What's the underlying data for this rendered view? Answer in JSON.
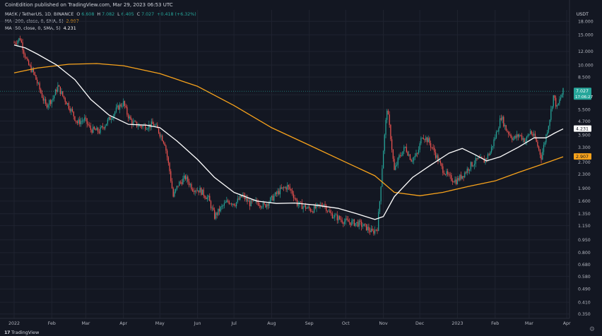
{
  "header": {
    "published": "CoinEdition published on TradingView.com, Mar 29, 2023 06:53 UTC",
    "symbol": "MASK / TetherUS, 1D, BINANCE",
    "ohlc": {
      "o_label": "O",
      "o": "6.608",
      "h_label": "H",
      "h": "7.082",
      "l_label": "L",
      "l": "6.405",
      "c_label": "C",
      "c": "7.027",
      "change": "+0.418 (+6.32%)"
    },
    "ma200": {
      "label": "MA (200, close, 0, SMA, 5)",
      "value": "2.907"
    },
    "ma50": {
      "label": "MA (50, close, 0, SMA, 5)",
      "value": "4.231"
    }
  },
  "colors": {
    "background": "#131722",
    "up": "#26a69a",
    "down": "#ef5350",
    "ma50": "#ffffff",
    "ma200": "#f7a21b",
    "grid": "#1f2330",
    "price_tag": "#26a69a"
  },
  "chart_data": {
    "type": "candlestick",
    "title": "MASK / TetherUS, 1D, BINANCE",
    "y_unit": "USDT",
    "y_scale": "log",
    "ylim": [
      0.33,
      21
    ],
    "x_range": [
      "2022-01-01",
      "2023-03-29"
    ],
    "y_ticks": [
      "18.000",
      "15.000",
      "12.000",
      "10.000",
      "8.500",
      "6.700",
      "5.500",
      "4.700",
      "3.900",
      "3.300",
      "2.700",
      "2.300",
      "1.900",
      "1.600",
      "1.350",
      "1.150",
      "0.950",
      "0.800",
      "0.680",
      "0.580",
      "0.490",
      "0.410",
      "0.350"
    ],
    "x_ticks": [
      "2022",
      "Feb",
      "Mar",
      "Apr",
      "May",
      "Jun",
      "Jul",
      "Aug",
      "Sep",
      "Oct",
      "Nov",
      "Dec",
      "2023",
      "Feb",
      "Mar",
      "Apr"
    ],
    "price_tags": [
      {
        "label": "7.027",
        "sub": "17:06:27",
        "value": 7.027,
        "color": "#26a69a"
      },
      {
        "label": "4.231",
        "value": 4.231,
        "color": "#ffffff"
      },
      {
        "label": "2.907",
        "value": 2.907,
        "color": "#f7a21b"
      }
    ],
    "price_path": [
      [
        "2022-01-01",
        13.5
      ],
      [
        "2022-01-06",
        14.3
      ],
      [
        "2022-01-09",
        12.0
      ],
      [
        "2022-01-12",
        10.2
      ],
      [
        "2022-01-17",
        9.0
      ],
      [
        "2022-01-22",
        7.2
      ],
      [
        "2022-01-27",
        5.8
      ],
      [
        "2022-02-02",
        6.4
      ],
      [
        "2022-02-06",
        7.5
      ],
      [
        "2022-02-10",
        6.6
      ],
      [
        "2022-02-16",
        5.6
      ],
      [
        "2022-02-22",
        4.6
      ],
      [
        "2022-02-28",
        4.8
      ],
      [
        "2022-03-05",
        4.2
      ],
      [
        "2022-03-12",
        4.1
      ],
      [
        "2022-03-18",
        4.6
      ],
      [
        "2022-03-23",
        5.1
      ],
      [
        "2022-03-28",
        5.7
      ],
      [
        "2022-04-01",
        6.0
      ],
      [
        "2022-04-04",
        5.2
      ],
      [
        "2022-04-08",
        4.6
      ],
      [
        "2022-04-14",
        4.4
      ],
      [
        "2022-04-20",
        4.4
      ],
      [
        "2022-04-26",
        4.5
      ],
      [
        "2022-04-30",
        4.1
      ],
      [
        "2022-05-05",
        3.5
      ],
      [
        "2022-05-09",
        2.4
      ],
      [
        "2022-05-12",
        1.7
      ],
      [
        "2022-05-16",
        2.0
      ],
      [
        "2022-05-22",
        2.2
      ],
      [
        "2022-05-28",
        1.9
      ],
      [
        "2022-06-03",
        1.85
      ],
      [
        "2022-06-10",
        1.65
      ],
      [
        "2022-06-15",
        1.3
      ],
      [
        "2022-06-20",
        1.45
      ],
      [
        "2022-06-26",
        1.6
      ],
      [
        "2022-07-02",
        1.55
      ],
      [
        "2022-07-08",
        1.72
      ],
      [
        "2022-07-14",
        1.55
      ],
      [
        "2022-07-20",
        1.58
      ],
      [
        "2022-07-26",
        1.5
      ],
      [
        "2022-08-01",
        1.65
      ],
      [
        "2022-08-08",
        1.85
      ],
      [
        "2022-08-14",
        1.95
      ],
      [
        "2022-08-18",
        1.8
      ],
      [
        "2022-08-22",
        1.55
      ],
      [
        "2022-08-28",
        1.48
      ],
      [
        "2022-09-03",
        1.42
      ],
      [
        "2022-09-08",
        1.48
      ],
      [
        "2022-09-13",
        1.55
      ],
      [
        "2022-09-18",
        1.35
      ],
      [
        "2022-09-24",
        1.28
      ],
      [
        "2022-09-30",
        1.22
      ],
      [
        "2022-10-06",
        1.2
      ],
      [
        "2022-10-12",
        1.18
      ],
      [
        "2022-10-18",
        1.12
      ],
      [
        "2022-10-23",
        1.05
      ],
      [
        "2022-10-27",
        1.12
      ],
      [
        "2022-10-29",
        1.6
      ],
      [
        "2022-11-01",
        3.2
      ],
      [
        "2022-11-04",
        5.6
      ],
      [
        "2022-11-07",
        3.8
      ],
      [
        "2022-11-10",
        2.4
      ],
      [
        "2022-11-14",
        2.9
      ],
      [
        "2022-11-19",
        3.3
      ],
      [
        "2022-11-24",
        2.8
      ],
      [
        "2022-11-29",
        3.0
      ],
      [
        "2022-12-03",
        3.9
      ],
      [
        "2022-12-08",
        3.6
      ],
      [
        "2022-12-13",
        3.1
      ],
      [
        "2022-12-19",
        2.5
      ],
      [
        "2022-12-25",
        2.2
      ],
      [
        "2022-12-31",
        2.1
      ],
      [
        "2023-01-06",
        2.3
      ],
      [
        "2023-01-12",
        2.6
      ],
      [
        "2023-01-18",
        2.8
      ],
      [
        "2023-01-23",
        2.75
      ],
      [
        "2023-01-28",
        3.1
      ],
      [
        "2023-02-02",
        4.0
      ],
      [
        "2023-02-06",
        5.0
      ],
      [
        "2023-02-10",
        4.2
      ],
      [
        "2023-02-16",
        3.7
      ],
      [
        "2023-02-21",
        3.9
      ],
      [
        "2023-02-26",
        3.6
      ],
      [
        "2023-03-02",
        4.1
      ],
      [
        "2023-03-06",
        3.7
      ],
      [
        "2023-03-11",
        2.9
      ],
      [
        "2023-03-14",
        3.6
      ],
      [
        "2023-03-18",
        4.9
      ],
      [
        "2023-03-21",
        6.6
      ],
      [
        "2023-03-24",
        5.6
      ],
      [
        "2023-03-26",
        6.2
      ],
      [
        "2023-03-29",
        7.027
      ]
    ],
    "ma50_path": [
      [
        "2022-01-01",
        13.1
      ],
      [
        "2022-01-10",
        12.6
      ],
      [
        "2022-01-20",
        11.6
      ],
      [
        "2022-02-05",
        10.0
      ],
      [
        "2022-02-20",
        8.2
      ],
      [
        "2022-03-05",
        6.3
      ],
      [
        "2022-03-20",
        5.1
      ],
      [
        "2022-04-05",
        4.5
      ],
      [
        "2022-04-20",
        4.45
      ],
      [
        "2022-05-01",
        4.3
      ],
      [
        "2022-05-15",
        3.6
      ],
      [
        "2022-06-01",
        2.8
      ],
      [
        "2022-06-15",
        2.2
      ],
      [
        "2022-07-01",
        1.8
      ],
      [
        "2022-07-20",
        1.6
      ],
      [
        "2022-08-05",
        1.55
      ],
      [
        "2022-08-20",
        1.56
      ],
      [
        "2022-09-05",
        1.52
      ],
      [
        "2022-09-25",
        1.45
      ],
      [
        "2022-10-10",
        1.35
      ],
      [
        "2022-10-25",
        1.25
      ],
      [
        "2022-11-01",
        1.3
      ],
      [
        "2022-11-10",
        1.7
      ],
      [
        "2022-11-25",
        2.2
      ],
      [
        "2022-12-10",
        2.6
      ],
      [
        "2022-12-25",
        3.05
      ],
      [
        "2023-01-05",
        3.25
      ],
      [
        "2023-01-15",
        3.0
      ],
      [
        "2023-01-25",
        2.75
      ],
      [
        "2023-02-05",
        2.9
      ],
      [
        "2023-02-20",
        3.3
      ],
      [
        "2023-03-05",
        3.75
      ],
      [
        "2023-03-15",
        3.75
      ],
      [
        "2023-03-22",
        4.0
      ],
      [
        "2023-03-29",
        4.231
      ]
    ],
    "ma200_path": [
      [
        "2022-01-01",
        9.0
      ],
      [
        "2022-01-20",
        9.6
      ],
      [
        "2022-02-15",
        10.1
      ],
      [
        "2022-03-10",
        10.2
      ],
      [
        "2022-04-01",
        9.9
      ],
      [
        "2022-05-01",
        8.9
      ],
      [
        "2022-06-01",
        7.5
      ],
      [
        "2022-07-01",
        5.8
      ],
      [
        "2022-08-01",
        4.3
      ],
      [
        "2022-09-01",
        3.4
      ],
      [
        "2022-10-01",
        2.7
      ],
      [
        "2022-10-25",
        2.25
      ],
      [
        "2022-11-10",
        1.8
      ],
      [
        "2022-12-01",
        1.72
      ],
      [
        "2022-12-20",
        1.8
      ],
      [
        "2023-01-10",
        1.95
      ],
      [
        "2023-02-01",
        2.1
      ],
      [
        "2023-02-20",
        2.35
      ],
      [
        "2023-03-10",
        2.6
      ],
      [
        "2023-03-29",
        2.907
      ]
    ]
  }
}
